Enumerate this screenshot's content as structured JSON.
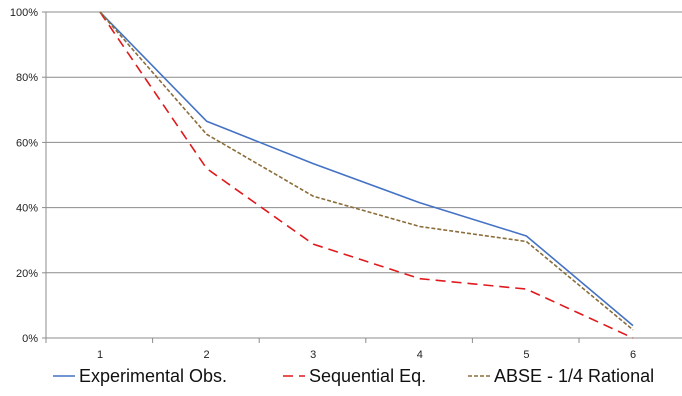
{
  "chart_data": {
    "type": "line",
    "title": "",
    "xlabel": "",
    "ylabel": "",
    "x": [
      1,
      2,
      3,
      4,
      5,
      6
    ],
    "x_tick_labels": [
      "1",
      "2",
      "3",
      "4",
      "5",
      "6"
    ],
    "ylim": [
      0,
      100
    ],
    "y_ticks": [
      0,
      20,
      40,
      60,
      80,
      100
    ],
    "y_tick_labels": [
      "0%",
      "20%",
      "40%",
      "60%",
      "80%",
      "100%"
    ],
    "grid": "horizontal",
    "legend_position": "bottom",
    "series": [
      {
        "name": "Experimental Obs.",
        "values": [
          100,
          66.5,
          53.5,
          41.5,
          31.3,
          3.8
        ],
        "color": "#4472C4",
        "style": "solid"
      },
      {
        "name": "Sequential Eq.",
        "values": [
          100,
          52,
          28.8,
          18.2,
          15,
          0
        ],
        "color": "#E0191C",
        "style": "long-dash"
      },
      {
        "name": "ABSE - 1/4 Rational",
        "values": [
          100,
          62.5,
          43.5,
          34.2,
          29.6,
          2.5
        ],
        "color": "#8B6D3A",
        "style": "short-dash"
      }
    ]
  }
}
